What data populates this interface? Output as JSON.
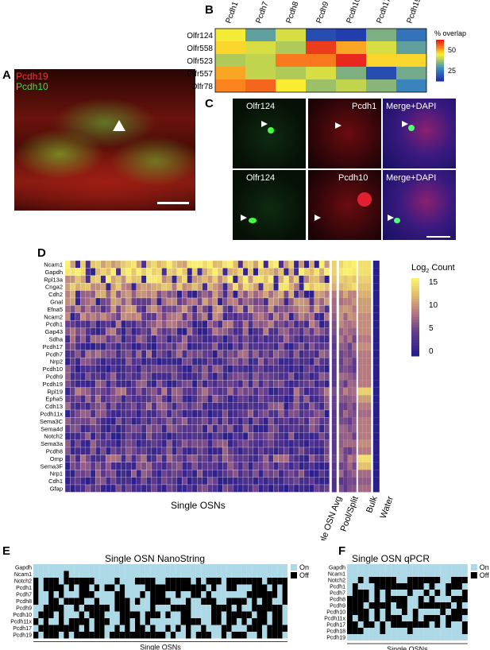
{
  "panels": {
    "A": {
      "label": "A",
      "legend": [
        "Pcdh19",
        "Pcdh10"
      ],
      "legend_colors": [
        "#ff3030",
        "#33e633"
      ]
    },
    "B": {
      "label": "B"
    },
    "C": {
      "label": "C",
      "row1": [
        "Olfr124",
        "Pcdh1",
        "Merge+DAPI"
      ],
      "row2": [
        "Olfr124",
        "Pcdh10",
        "Merge+DAPI"
      ]
    },
    "D": {
      "label": "D"
    },
    "E": {
      "label": "E"
    },
    "F": {
      "label": "F"
    }
  },
  "chart_data": [
    {
      "id": "B",
      "type": "heatmap",
      "columns": [
        "Pcdh1",
        "Pcdh7",
        "Pcdh8",
        "Pcdh9",
        "Pcdh10",
        "Pcdh17",
        "Pcdh19"
      ],
      "rows": [
        "Olfr124",
        "Olfr558",
        "Olfr523",
        "Olfr557",
        "Olfr78"
      ],
      "values": [
        [
          45,
          30,
          42,
          15,
          12,
          33,
          22
        ],
        [
          48,
          42,
          38,
          62,
          52,
          42,
          30
        ],
        [
          38,
          40,
          56,
          56,
          64,
          48,
          48
        ],
        [
          52,
          40,
          38,
          42,
          33,
          15,
          32
        ],
        [
          55,
          58,
          46,
          36,
          40,
          34,
          25
        ]
      ],
      "colorbar": {
        "title": "% overlap",
        "ticks": [
          "50",
          "25"
        ],
        "range": [
          10,
          65
        ]
      }
    },
    {
      "id": "D",
      "type": "heatmap",
      "genes": [
        "Ncam1",
        "Gapdh",
        "Rpl13a",
        "Cnga2",
        "Cdh2",
        "Gnal",
        "Efna5",
        "Ncam2",
        "Pcdh1",
        "Gap43",
        "Sdha",
        "Pcdh17",
        "Pcdh7",
        "Nrp2",
        "Pcdh10",
        "Pcdh9",
        "Pcdh19",
        "Rpl19",
        "Epha5",
        "Cdh13",
        "Pcdh11x",
        "Sema3C",
        "Sema4d",
        "Notch2",
        "Sema3a",
        "Pcdh8",
        "Omp",
        "Sema3F",
        "Nrp1",
        "Cdh1",
        "Gfap"
      ],
      "column_groups": [
        "Single OSNs",
        "Single OSN Avg",
        "Pool/Split",
        "Bulk",
        "Water"
      ],
      "colorbar": {
        "title": "Log",
        "title_sub": "2",
        "title_suffix": " Count",
        "ticks": [
          "15",
          "10",
          "5",
          "0"
        ],
        "range": [
          0,
          16
        ]
      },
      "row_means": [
        14,
        14,
        13,
        12,
        9,
        8,
        8,
        7,
        6,
        6,
        5,
        4,
        5,
        4,
        4,
        4,
        4,
        6,
        5,
        5,
        4,
        4,
        4,
        4,
        4,
        4,
        5,
        4,
        4,
        3,
        3
      ],
      "bulk_values": [
        15,
        15,
        14,
        13,
        12,
        11,
        11,
        10,
        10,
        10,
        9,
        10,
        9,
        9,
        9,
        9,
        9,
        14,
        11,
        9,
        8,
        9,
        9,
        9,
        10,
        9,
        15,
        13,
        8,
        7,
        8
      ]
    },
    {
      "id": "E",
      "type": "heatmap",
      "title": "Single OSN NanoString",
      "genes": [
        "Gapdh",
        "Ncam1",
        "Notch2",
        "Pcdh1",
        "Pcdh7",
        "Pcdh8",
        "Pcdh9",
        "Pcdh10",
        "Pcdh11x",
        "Pcdh17",
        "Pcdh19"
      ],
      "xlabel": "Single OSNs",
      "legend": [
        "On",
        "Off"
      ]
    },
    {
      "id": "F",
      "type": "heatmap",
      "title": "Single OSN qPCR",
      "genes": [
        "Gapdh",
        "Ncam1",
        "Notch2",
        "Pcdh1",
        "Pcdh7",
        "Pcdh8",
        "Pcdh9",
        "Pcdh10",
        "Pcdh11x",
        "Pcdh17",
        "Pcdh18",
        "Pcdh19"
      ],
      "xlabel": "Single OSNs",
      "legend": [
        "On",
        "Off"
      ]
    }
  ]
}
